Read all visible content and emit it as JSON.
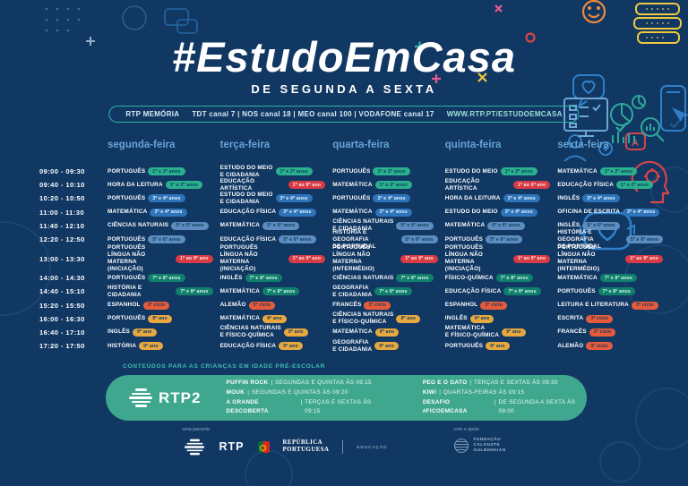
{
  "colors": {
    "background": "#113763",
    "day_header": "#67a5d6",
    "pill_border": "#2fb3a3",
    "preschool_bar": "#3ea78e",
    "preschool_heading": "#3fbfad"
  },
  "header": {
    "title": "#EstudoEmCasa",
    "subtitle": "DE SEGUNDA A SEXTA",
    "network": "RTP MEMÓRIA",
    "channels": "TDT canal 7 | NOS canal 18 | MEO canal 100 | VODAFONE canal 17",
    "website": "WWW.RTP.PT/ESTUDOEMCASA"
  },
  "levels": {
    "g12": {
      "label": "1º e 2º anos",
      "bg": "#2ab08d",
      "fg": "#0d3a5f"
    },
    "g34": {
      "label": "3º e 4º anos",
      "bg": "#2e74ba",
      "fg": "#eaf3fb"
    },
    "g56": {
      "label": "5º e 6º anos",
      "bg": "#5d8cbe",
      "fg": "#0d3a5f"
    },
    "g78": {
      "label": "7º e 8º anos",
      "bg": "#10806c",
      "fg": "#d9f3ec"
    },
    "g9": {
      "label": "9º ano",
      "bg": "#e7a93f",
      "fg": "#123a63"
    },
    "c3": {
      "label": "3º ciclo",
      "bg": "#e65c3b",
      "fg": "#16325c"
    },
    "g19": {
      "label": "1º ao 9º ano",
      "bg": "#d93b44",
      "fg": "#fbe9ea"
    }
  },
  "schedule": {
    "days": [
      "segunda-feira",
      "terça-feira",
      "quarta-feira",
      "quinta-feira",
      "sexta-feira"
    ],
    "rows": [
      {
        "time": "09:00 - 09:30",
        "cells": [
          {
            "s": "PORTUGUÊS",
            "l": "g12"
          },
          {
            "s": "ESTUDO DO MEIO\nE CIDADANIA",
            "l": "g12"
          },
          {
            "s": "PORTUGUÊS",
            "l": "g12"
          },
          {
            "s": "ESTUDO DO MEIO",
            "l": "g12"
          },
          {
            "s": "MATEMÁTICA",
            "l": "g12"
          }
        ]
      },
      {
        "time": "09:40 - 10:10",
        "cells": [
          {
            "s": "HORA DA LEITURA",
            "l": "g12"
          },
          {
            "s": "EDUCAÇÃO ARTÍSTICA",
            "l": "g19"
          },
          {
            "s": "MATEMÁTICA",
            "l": "g12"
          },
          {
            "s": "EDUCAÇÃO ARTÍSTICA",
            "l": "g19"
          },
          {
            "s": "EDUCAÇÃO FÍSICA",
            "l": "g12"
          }
        ]
      },
      {
        "time": "10:20 - 10:50",
        "cells": [
          {
            "s": "PORTUGUÊS",
            "l": "g34"
          },
          {
            "s": "ESTUDO DO MEIO\nE CIDADANIA",
            "l": "g34"
          },
          {
            "s": "PORTUGUÊS",
            "l": "g34"
          },
          {
            "s": "HORA DA LEITURA",
            "l": "g34"
          },
          {
            "s": "INGLÊS",
            "l": "g34"
          }
        ]
      },
      {
        "time": "11:00 - 11:30",
        "cells": [
          {
            "s": "MATEMÁTICA",
            "l": "g34"
          },
          {
            "s": "EDUCAÇÃO FÍSICA",
            "l": "g34"
          },
          {
            "s": "MATEMÁTICA",
            "l": "g34"
          },
          {
            "s": "ESTUDO DO MEIO",
            "l": "g34"
          },
          {
            "s": "OFICINA DE ESCRITA",
            "l": "g34"
          }
        ]
      },
      {
        "time": "11:40 - 12:10",
        "cells": [
          {
            "s": "CIÊNCIAS NATURAIS",
            "l": "g56"
          },
          {
            "s": "MATEMÁTICA",
            "l": "g56"
          },
          {
            "s": "CIÊNCIAS NATURAIS\nE CIDADANIA",
            "l": "g56"
          },
          {
            "s": "MATEMÁTICA",
            "l": "g56"
          },
          {
            "s": "INGLÊS",
            "l": "g56"
          }
        ]
      },
      {
        "time": "12:20 - 12:50",
        "cells": [
          {
            "s": "PORTUGUÊS",
            "l": "g56"
          },
          {
            "s": "EDUCAÇÃO FÍSICA",
            "l": "g56"
          },
          {
            "s": "HISTÓRIA E GEOGRAFIA\nDE PORTUGAL",
            "l": "g56"
          },
          {
            "s": "PORTUGUÊS",
            "l": "g56"
          },
          {
            "s": "HISTÓRIA E GEOGRAFIA\nDE PORTUGAL",
            "l": "g56"
          }
        ]
      },
      {
        "time": "13:00 - 13:30",
        "cells": [
          {
            "s": "PORTUGUÊS\nLÍNGUA NÃO MATERNA\n(INICIAÇÃO)",
            "l": "g19"
          },
          {
            "s": "PORTUGUÊS\nLÍNGUA NÃO MATERNA\n(INICIAÇÃO)",
            "l": "g19"
          },
          {
            "s": "PORTUGUÊS\nLÍNGUA NÃO MATERNA\n(INTERMÉDIO)",
            "l": "g19"
          },
          {
            "s": "PORTUGUÊS\nLÍNGUA NÃO MATERNA\n(INICIAÇÃO)",
            "l": "g19"
          },
          {
            "s": "PORTUGUÊS\nLÍNGUA NÃO MATERNA\n(INTERMÉDIO)",
            "l": "g19"
          }
        ]
      },
      {
        "time": "14:00 - 14:30",
        "cells": [
          {
            "s": "PORTUGUÊS",
            "l": "g78"
          },
          {
            "s": "INGLÊS",
            "l": "g78"
          },
          {
            "s": "CIÊNCIAS NATURAIS",
            "l": "g78"
          },
          {
            "s": "FÍSICO-QUÍMICA",
            "l": "g78"
          },
          {
            "s": "MATEMÁTICA",
            "l": "g78"
          }
        ]
      },
      {
        "time": "14:40 - 15:10",
        "cells": [
          {
            "s": "HISTÓRIA E CIDADANIA",
            "l": "g78"
          },
          {
            "s": "MATEMÁTICA",
            "l": "g78"
          },
          {
            "s": "GEOGRAFIA\nE CIDADANIA",
            "l": "g78"
          },
          {
            "s": "EDUCAÇÃO FÍSICA",
            "l": "g78"
          },
          {
            "s": "PORTUGUÊS",
            "l": "g78"
          }
        ]
      },
      {
        "time": "15:20 - 15:50",
        "cells": [
          {
            "s": "ESPANHOL",
            "l": "c3"
          },
          {
            "s": "ALEMÃO",
            "l": "c3"
          },
          {
            "s": "FRANCÊS",
            "l": "c3"
          },
          {
            "s": "ESPANHOL",
            "l": "c3"
          },
          {
            "s": "LEITURA E LITERATURA",
            "l": "c3"
          }
        ]
      },
      {
        "time": "16:00 - 16:30",
        "cells": [
          {
            "s": "PORTUGUÊS",
            "l": "g9"
          },
          {
            "s": "MATEMÁTICA",
            "l": "g9"
          },
          {
            "s": "CIÊNCIAS NATURAIS\nE FÍSICO-QUÍMICA",
            "l": "g9"
          },
          {
            "s": "INGLÊS",
            "l": "g9"
          },
          {
            "s": "ESCRITA",
            "l": "c3"
          }
        ]
      },
      {
        "time": "16:40 - 17:10",
        "cells": [
          {
            "s": "INGLÊS",
            "l": "g9"
          },
          {
            "s": "CIÊNCIAS NATURAIS\nE FÍSICO-QUÍMICA",
            "l": "g9"
          },
          {
            "s": "MATEMÁTICA",
            "l": "g9"
          },
          {
            "s": "MATEMÁTICA\nE FÍSICO-QUÍMICA",
            "l": "g9"
          },
          {
            "s": "FRANCÊS",
            "l": "c3"
          }
        ]
      },
      {
        "time": "17:20 - 17:50",
        "cells": [
          {
            "s": "HISTÓRIA",
            "l": "g9"
          },
          {
            "s": "EDUCAÇÃO FÍSICA",
            "l": "g9"
          },
          {
            "s": "GEOGRAFIA\nE CIDADANIA",
            "l": "g9"
          },
          {
            "s": "PORTUGUÊS",
            "l": "g9"
          },
          {
            "s": "ALEMÃO",
            "l": "c3"
          }
        ]
      }
    ]
  },
  "preschool": {
    "heading": "CONTEÚDOS PARA AS CRIANÇAS EM IDADE PRÉ-ESCOLAR",
    "channel_label": "RTP2",
    "col1": [
      {
        "name": "PUFFIN ROCK",
        "info": "SEGUNDAS E QUINTAS ÀS 09:15"
      },
      {
        "name": "MOUK",
        "info": "SEGUNDAS E QUINTAS ÀS 09:20"
      },
      {
        "name": "A GRANDE DESCOBERTA",
        "info": "TERÇAS E SEXTAS ÀS 09:15"
      }
    ],
    "col2": [
      {
        "name": "PEG E O GATO",
        "info": "TERÇAS E SEXTAS ÀS 09:30"
      },
      {
        "name": "KIWI",
        "info": "QUARTAS-FEIRAS ÀS 09:15"
      },
      {
        "name": "DESAFIO #FICOEMCASA",
        "info": "DE SEGUNDA A SEXTA ÀS 09:00"
      }
    ]
  },
  "footer": {
    "partnership_label": "uma parceria",
    "support_label": "com o apoio",
    "rtp_label": "RTP",
    "republica": "REPÚBLICA\nPORTUGUESA",
    "educacao": "EDUCAÇÃO",
    "gulbenkian": "FUNDAÇÃO\nCALOUSTE\nGULBENKIAN"
  },
  "decor_icons": [
    "smiley-icon",
    "chat-stack-icon",
    "heart-bubble-icon",
    "person-icon",
    "letter-a-bubble-icon",
    "head-gear-icon",
    "heart-refresh-icon",
    "monitor-icon",
    "pie-chart-icon",
    "magnifier-icon",
    "phone-cursor-icon",
    "check-icon",
    "plus-mark",
    "x-mark",
    "dot-grid"
  ]
}
